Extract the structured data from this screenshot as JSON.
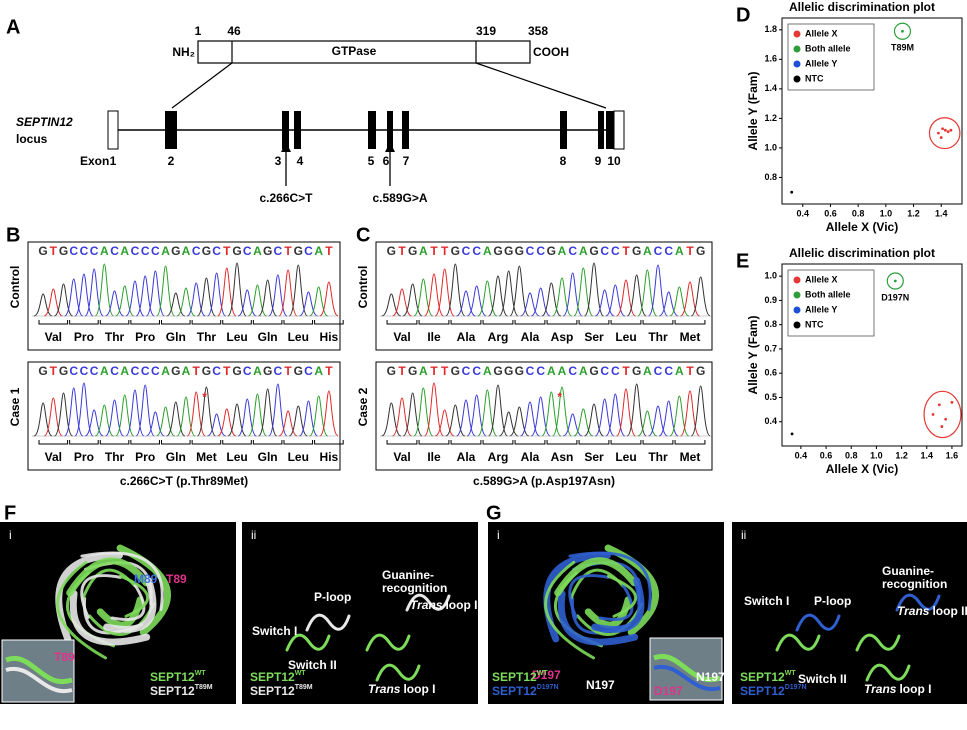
{
  "panel_labels": [
    "A",
    "B",
    "C",
    "D",
    "E",
    "F",
    "G"
  ],
  "panel_a": {
    "residues": [
      1,
      46,
      319,
      358
    ],
    "n_term": "NH₂",
    "domain": "GTPase",
    "c_term": "COOH",
    "gene": "SEPTIN12",
    "gene_suffix": "locus",
    "exon_label": "Exon",
    "exons": [
      "1",
      "2",
      "3",
      "4",
      "5",
      "6",
      "7",
      "8",
      "9",
      "10"
    ],
    "variants": [
      "c.266C>T",
      "c.589G>A"
    ]
  },
  "sequencing": [
    {
      "rows": [
        {
          "label": "Control",
          "sequence": "GTGCCCACACCCAGACGCTGCAGCTGCAT",
          "amino_acids": [
            "Val",
            "Pro",
            "Thr",
            "Pro",
            "Gln",
            "Thr",
            "Leu",
            "Gln",
            "Leu",
            "His"
          ]
        },
        {
          "label": "Case 1",
          "sequence": "GTGCCCACACCCAGATGCTGCAGCTGCAT",
          "amino_acids": [
            "Val",
            "Pro",
            "Thr",
            "Pro",
            "Gln",
            "Met",
            "Leu",
            "Gln",
            "Leu",
            "His"
          ],
          "marker": "*"
        }
      ],
      "caption": "c.266C>T (p.Thr89Met)"
    },
    {
      "rows": [
        {
          "label": "Control",
          "sequence": "GTGATTGCCAGGGCCGACAGCCTGACCATG",
          "amino_acids": [
            "Val",
            "Ile",
            "Ala",
            "Arg",
            "Ala",
            "Asp",
            "Ser",
            "Leu",
            "Thr",
            "Met"
          ]
        },
        {
          "label": "Case 2",
          "sequence": "GTGATTGCCAGGGCCAACAGCCTGACCATG",
          "amino_acids": [
            "Val",
            "Ile",
            "Ala",
            "Arg",
            "Ala",
            "Asn",
            "Ser",
            "Leu",
            "Thr",
            "Met"
          ],
          "marker": "*"
        }
      ],
      "caption": "c.589G>A (p.Asp197Asn)"
    }
  ],
  "chart_data": [
    {
      "type": "scatter",
      "title": "Allelic discrimination plot",
      "xlabel": "Allele X (Vic)",
      "ylabel": "Allele Y (Fam)",
      "xlim": [
        0.25,
        1.55
      ],
      "ylim": [
        0.62,
        1.88
      ],
      "xticks": [
        0.4,
        0.6,
        0.8,
        {
          "value": 1,
          "label": "1.0"
        },
        1.2,
        1.4
      ],
      "yticks": [
        0.8,
        {
          "value": 1,
          "label": "1.0"
        },
        1.2,
        1.4,
        1.6,
        1.8
      ],
      "legend": "upper left",
      "annotation": "T89M",
      "series": [
        {
          "name": "Allele X",
          "color": "#e53935",
          "x": [
            1.38,
            1.41,
            1.43,
            1.45,
            1.47,
            1.4
          ],
          "values": [
            1.1,
            1.13,
            1.12,
            1.11,
            1.12,
            1.07
          ]
        },
        {
          "name": "Both allele",
          "color": "#2e9e3a",
          "x": [
            1.12
          ],
          "values": [
            1.79
          ]
        },
        {
          "name": "Allele Y",
          "color": "#1e4fd8",
          "x": [],
          "values": []
        },
        {
          "name": "NTC",
          "color": "#000000",
          "x": [
            0.32
          ],
          "values": [
            0.7
          ]
        }
      ]
    },
    {
      "type": "scatter",
      "title": "Allelic discrimination plot",
      "xlabel": "Allele X (Vic)",
      "ylabel": "Allele Y (Fam)",
      "xlim": [
        0.25,
        1.68
      ],
      "ylim": [
        0.3,
        1.05
      ],
      "xticks": [
        0.4,
        0.6,
        0.8,
        {
          "value": 1,
          "label": "1.0"
        },
        1.2,
        1.4,
        1.6
      ],
      "yticks": [
        0.4,
        0.5,
        0.6,
        0.7,
        0.8,
        0.9,
        {
          "value": 1,
          "label": "1.0"
        }
      ],
      "legend": "upper left",
      "annotation": "D197N",
      "series": [
        {
          "name": "Allele X",
          "color": "#e53935",
          "x": [
            1.45,
            1.5,
            1.55,
            1.6,
            1.52
          ],
          "values": [
            0.43,
            0.47,
            0.41,
            0.48,
            0.38
          ]
        },
        {
          "name": "Both allele",
          "color": "#2e9e3a",
          "x": [
            1.15
          ],
          "values": [
            0.98
          ]
        },
        {
          "name": "Allele Y",
          "color": "#1e4fd8",
          "x": [],
          "values": []
        },
        {
          "name": "NTC",
          "color": "#000000",
          "x": [
            0.33
          ],
          "values": [
            0.35
          ]
        }
      ]
    }
  ],
  "structures": [
    {
      "sub": [
        "i",
        "ii"
      ],
      "residues": [
        "M89",
        "T89"
      ],
      "inset_label": "T89",
      "legend": [
        {
          "name": "SEPT12",
          "sup": "WT"
        },
        {
          "name": "SEPT12",
          "sup": "T89M"
        }
      ],
      "regions": {
        "p_loop": "P-loop",
        "guanine": [
          "Guanine-",
          "recognition"
        ],
        "switch_1": "Switch I",
        "switch_2": "Switch II",
        "trans_2": [
          "Trans",
          "loop II"
        ],
        "trans_1": [
          "Trans",
          "loop I"
        ]
      }
    },
    {
      "sub": [
        "i",
        "ii"
      ],
      "residues": [
        "D197",
        "N197"
      ],
      "inset_label": "D197",
      "inset_label_2": "N197",
      "legend": [
        {
          "name": "SEPT12",
          "sup": "WT"
        },
        {
          "name": "SEPT12",
          "sup": "D197N"
        }
      ],
      "regions": {
        "p_loop": "P-loop",
        "guanine": [
          "Guanine-",
          "recognition"
        ],
        "switch_1": "Switch I",
        "switch_2": "Switch II",
        "trans_2": [
          "Trans",
          "loop II"
        ],
        "trans_1": [
          "Trans",
          "loop I"
        ]
      }
    }
  ]
}
